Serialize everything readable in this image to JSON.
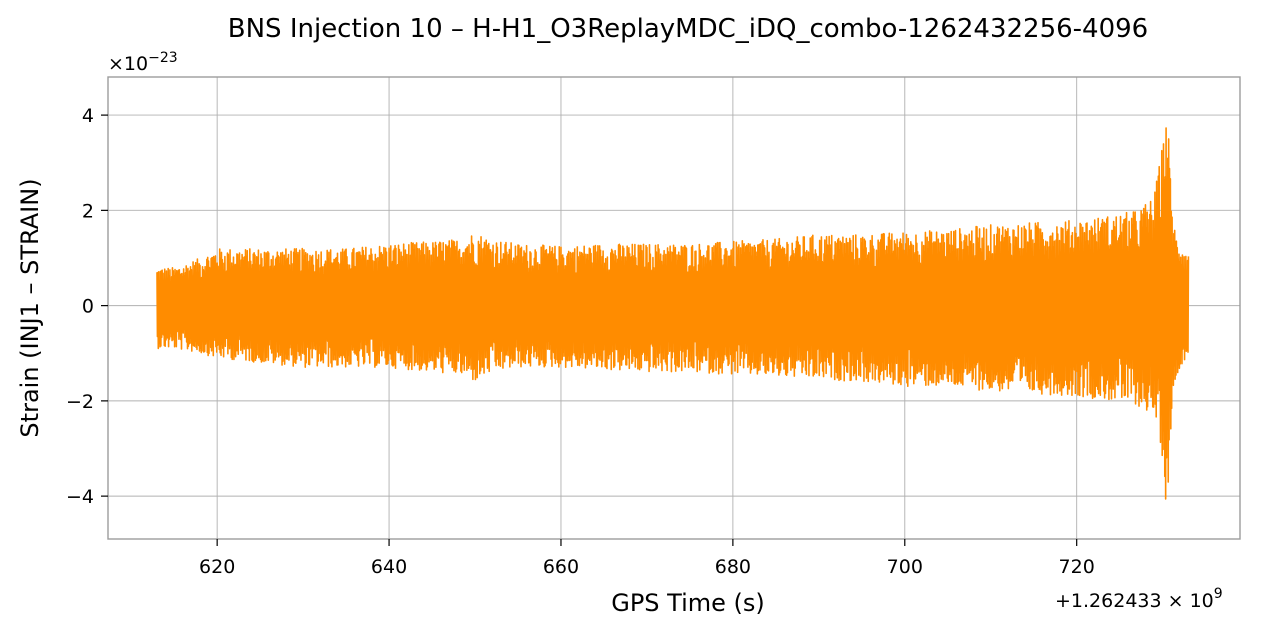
{
  "chart_data": {
    "type": "line",
    "title": "BNS Injection 10 – H-H1_O3ReplayMDC_iDQ_combo-1262432256-4096",
    "xlabel": "GPS Time (s)",
    "ylabel": "Strain (INJ1 – STRAIN)",
    "x_offset_label": "+1.262433 × 10",
    "x_offset_exponent": "9",
    "y_scale_label": "×10",
    "y_scale_exponent": "−23",
    "x_ticks": [
      620,
      640,
      660,
      680,
      700,
      720
    ],
    "x_tick_labels": [
      "620",
      "640",
      "660",
      "680",
      "700",
      "720"
    ],
    "y_ticks": [
      4,
      2,
      0,
      -2,
      -4
    ],
    "y_tick_labels": [
      "4",
      "2",
      "0",
      "−2",
      "−4"
    ],
    "xlim": [
      607.3,
      739.0
    ],
    "ylim": [
      -4.9,
      4.8
    ],
    "grid": true,
    "series": [
      {
        "color": "#ff8c00",
        "envelope": {
          "x": [
            613,
            615,
            618,
            620,
            625,
            630,
            635,
            640,
            645,
            648,
            650,
            652,
            655,
            660,
            665,
            670,
            675,
            680,
            685,
            690,
            695,
            700,
            705,
            710,
            715,
            720,
            724,
            727,
            729,
            730,
            730.5,
            731,
            731.5,
            732,
            733
          ],
          "upper": [
            0.8,
            0.8,
            1.0,
            1.2,
            1.2,
            1.2,
            1.2,
            1.3,
            1.35,
            1.4,
            1.55,
            1.4,
            1.3,
            1.25,
            1.3,
            1.3,
            1.3,
            1.35,
            1.4,
            1.5,
            1.5,
            1.55,
            1.6,
            1.7,
            1.75,
            1.8,
            1.9,
            2.0,
            2.3,
            3.4,
            4.35,
            2.4,
            1.5,
            1.4,
            1.1
          ],
          "lower": [
            -0.9,
            -0.9,
            -1.0,
            -1.1,
            -1.2,
            -1.3,
            -1.3,
            -1.3,
            -1.4,
            -1.45,
            -1.6,
            -1.4,
            -1.3,
            -1.3,
            -1.35,
            -1.4,
            -1.4,
            -1.45,
            -1.5,
            -1.55,
            -1.6,
            -1.7,
            -1.7,
            -1.8,
            -1.85,
            -1.9,
            -2.0,
            -2.1,
            -2.3,
            -3.2,
            -4.5,
            -2.4,
            -1.6,
            -1.3,
            -1.0
          ]
        }
      }
    ]
  }
}
